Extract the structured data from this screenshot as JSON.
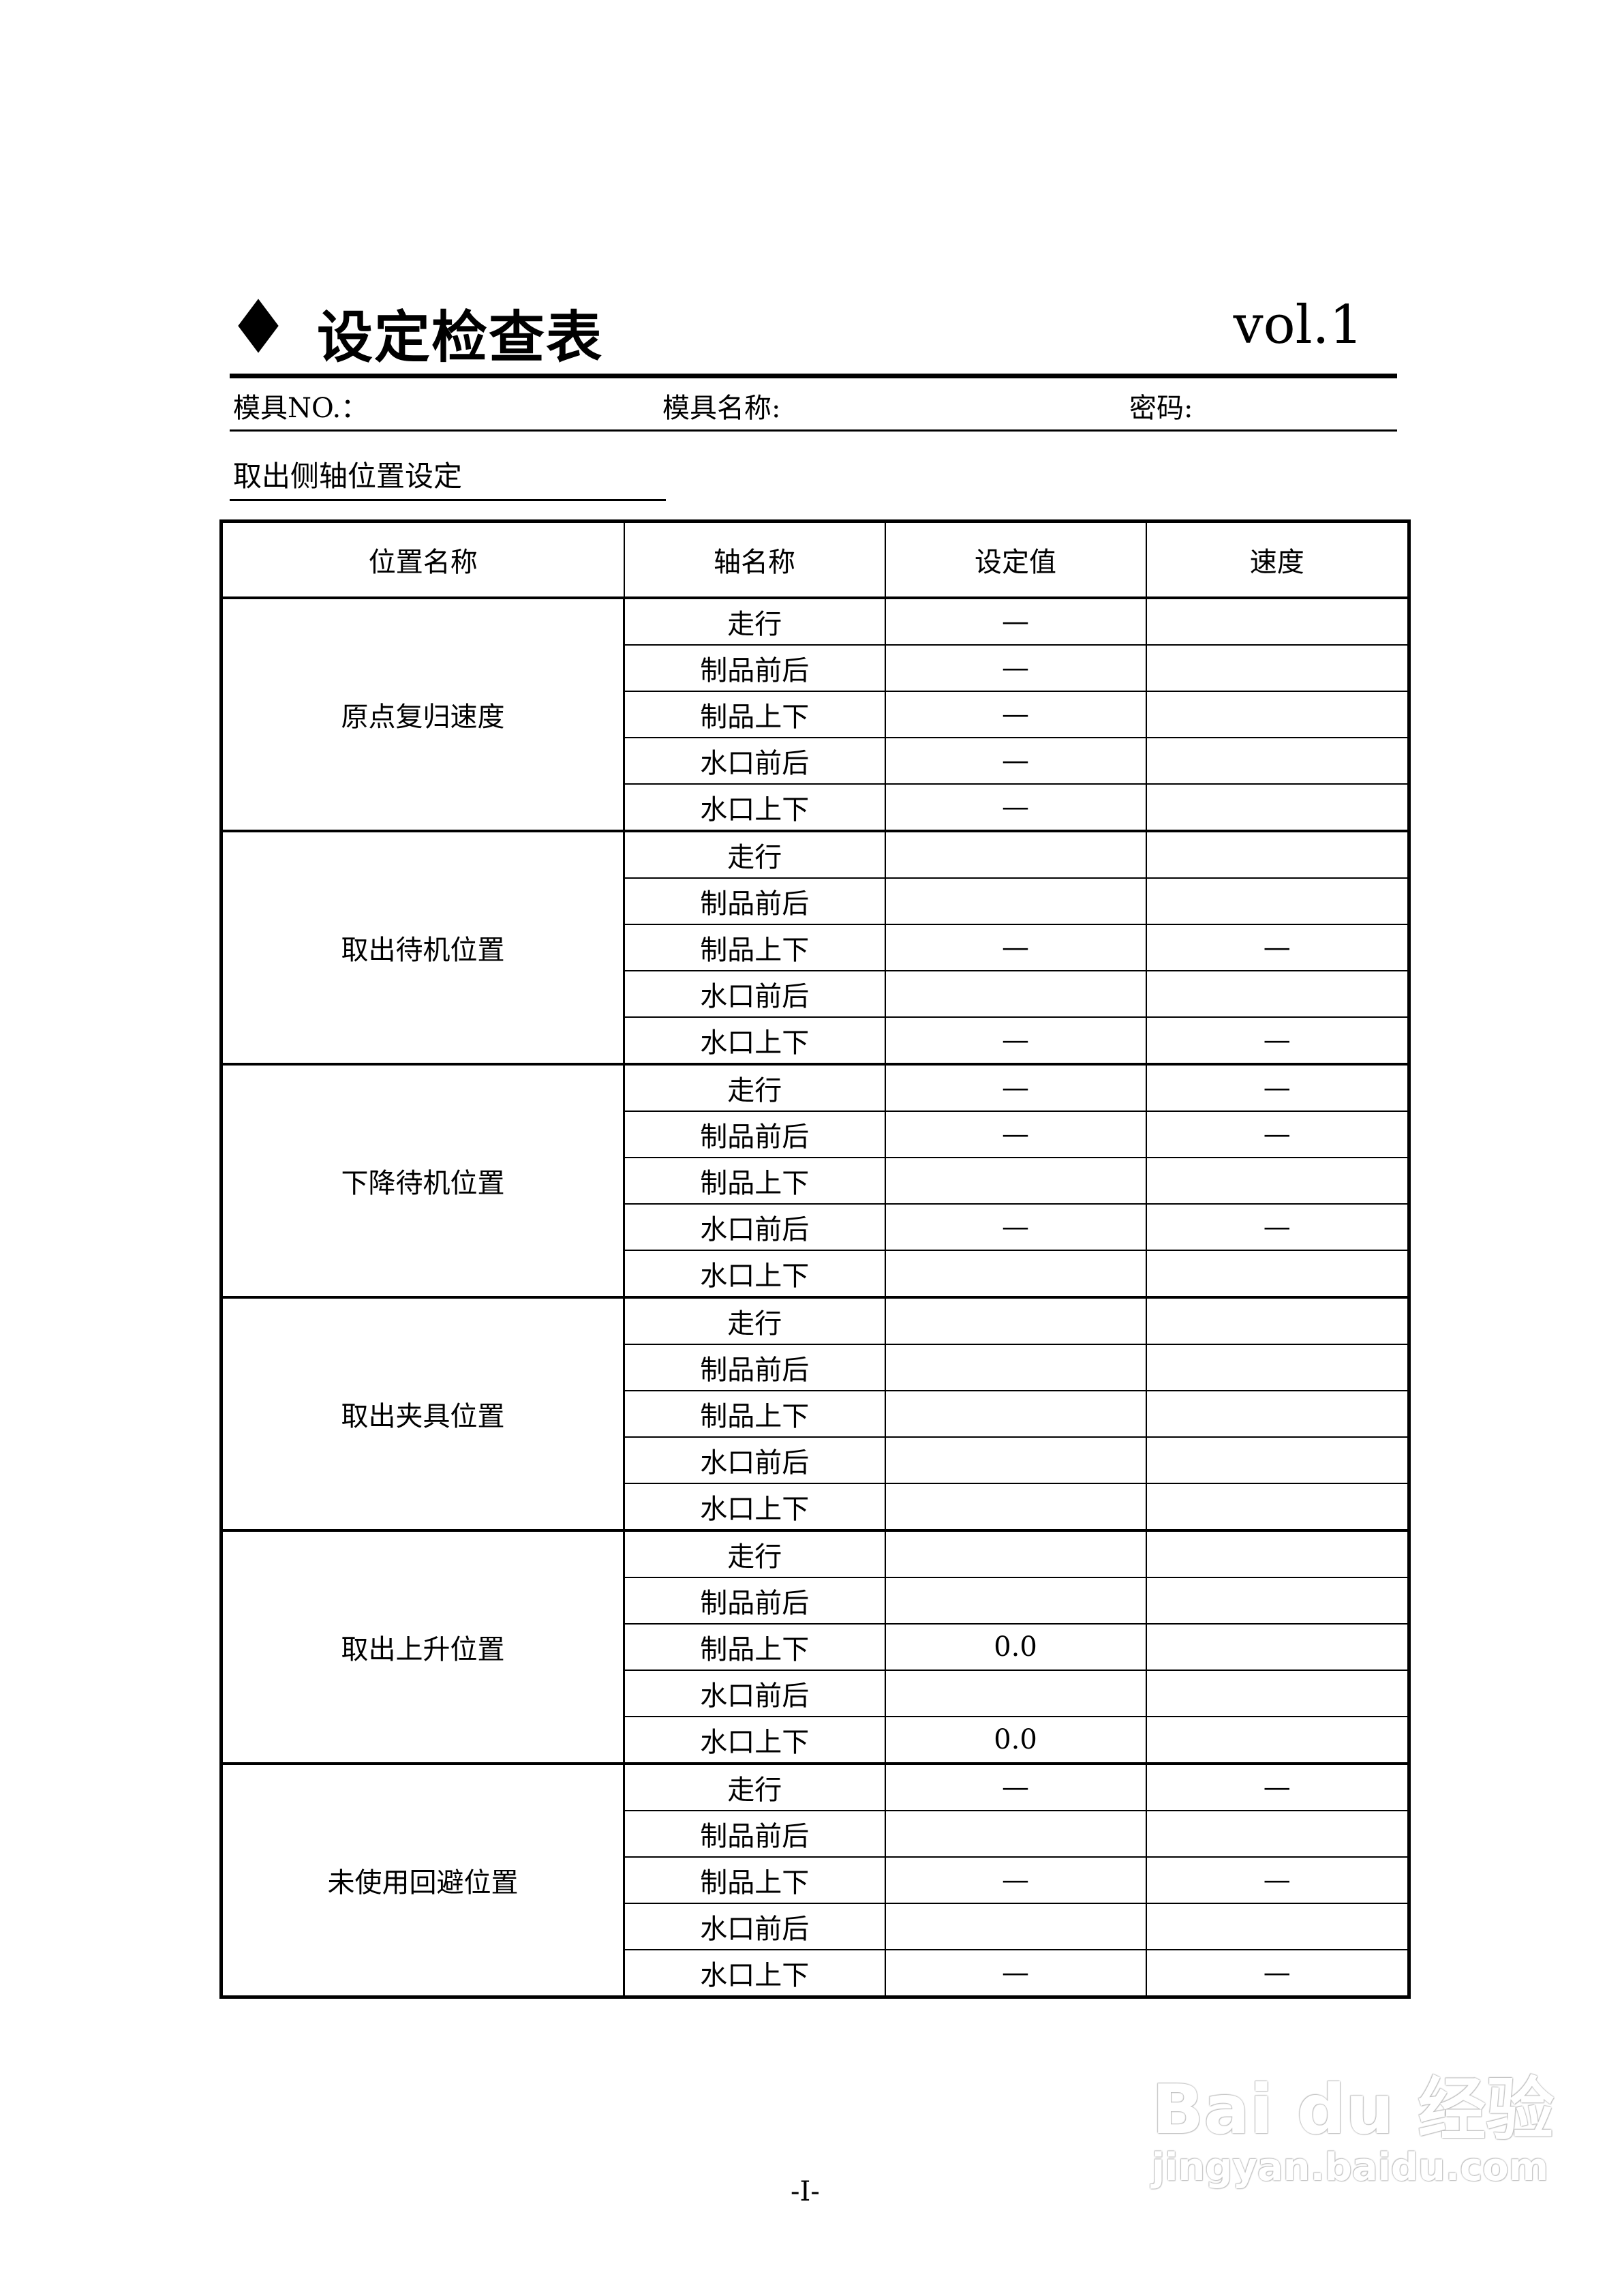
{
  "header": {
    "title": "设定检查表",
    "version": "vol.1",
    "bullet_icon": "diamond-icon"
  },
  "info": {
    "mold_no_label": "模具NO.：",
    "mold_name_label": "模具名称:",
    "password_label": "密码:"
  },
  "section_title": "取出侧轴位置设定",
  "table": {
    "columns": [
      "位置名称",
      "轴名称",
      "设定值",
      "速度"
    ],
    "groups": [
      {
        "position": "原点复归速度",
        "rows": [
          {
            "axis": "走行",
            "value": "—",
            "speed": ""
          },
          {
            "axis": "制品前后",
            "value": "—",
            "speed": ""
          },
          {
            "axis": "制品上下",
            "value": "—",
            "speed": ""
          },
          {
            "axis": "水口前后",
            "value": "—",
            "speed": ""
          },
          {
            "axis": "水口上下",
            "value": "—",
            "speed": ""
          }
        ]
      },
      {
        "position": "取出待机位置",
        "rows": [
          {
            "axis": "走行",
            "value": "",
            "speed": ""
          },
          {
            "axis": "制品前后",
            "value": "",
            "speed": ""
          },
          {
            "axis": "制品上下",
            "value": "—",
            "speed": "—"
          },
          {
            "axis": "水口前后",
            "value": "",
            "speed": ""
          },
          {
            "axis": "水口上下",
            "value": "—",
            "speed": "—"
          }
        ]
      },
      {
        "position": "下降待机位置",
        "rows": [
          {
            "axis": "走行",
            "value": "—",
            "speed": "—"
          },
          {
            "axis": "制品前后",
            "value": "—",
            "speed": "—"
          },
          {
            "axis": "制品上下",
            "value": "",
            "speed": ""
          },
          {
            "axis": "水口前后",
            "value": "—",
            "speed": "—"
          },
          {
            "axis": "水口上下",
            "value": "",
            "speed": ""
          }
        ]
      },
      {
        "position": "取出夹具位置",
        "rows": [
          {
            "axis": "走行",
            "value": "",
            "speed": ""
          },
          {
            "axis": "制品前后",
            "value": "",
            "speed": ""
          },
          {
            "axis": "制品上下",
            "value": "",
            "speed": ""
          },
          {
            "axis": "水口前后",
            "value": "",
            "speed": ""
          },
          {
            "axis": "水口上下",
            "value": "",
            "speed": ""
          }
        ]
      },
      {
        "position": "取出上升位置",
        "rows": [
          {
            "axis": "走行",
            "value": "",
            "speed": ""
          },
          {
            "axis": "制品前后",
            "value": "",
            "speed": ""
          },
          {
            "axis": "制品上下",
            "value": "0.0",
            "speed": ""
          },
          {
            "axis": "水口前后",
            "value": "",
            "speed": ""
          },
          {
            "axis": "水口上下",
            "value": "0.0",
            "speed": ""
          }
        ]
      },
      {
        "position": "未使用回避位置",
        "rows": [
          {
            "axis": "走行",
            "value": "—",
            "speed": "—"
          },
          {
            "axis": "制品前后",
            "value": "",
            "speed": ""
          },
          {
            "axis": "制品上下",
            "value": "—",
            "speed": "—"
          },
          {
            "axis": "水口前后",
            "value": "",
            "speed": ""
          },
          {
            "axis": "水口上下",
            "value": "—",
            "speed": "—"
          }
        ]
      }
    ]
  },
  "footer": {
    "page_number": "-I-"
  },
  "watermark": {
    "logo_text": "Bai du 经验",
    "url_text": "jingyan.baidu.com"
  }
}
